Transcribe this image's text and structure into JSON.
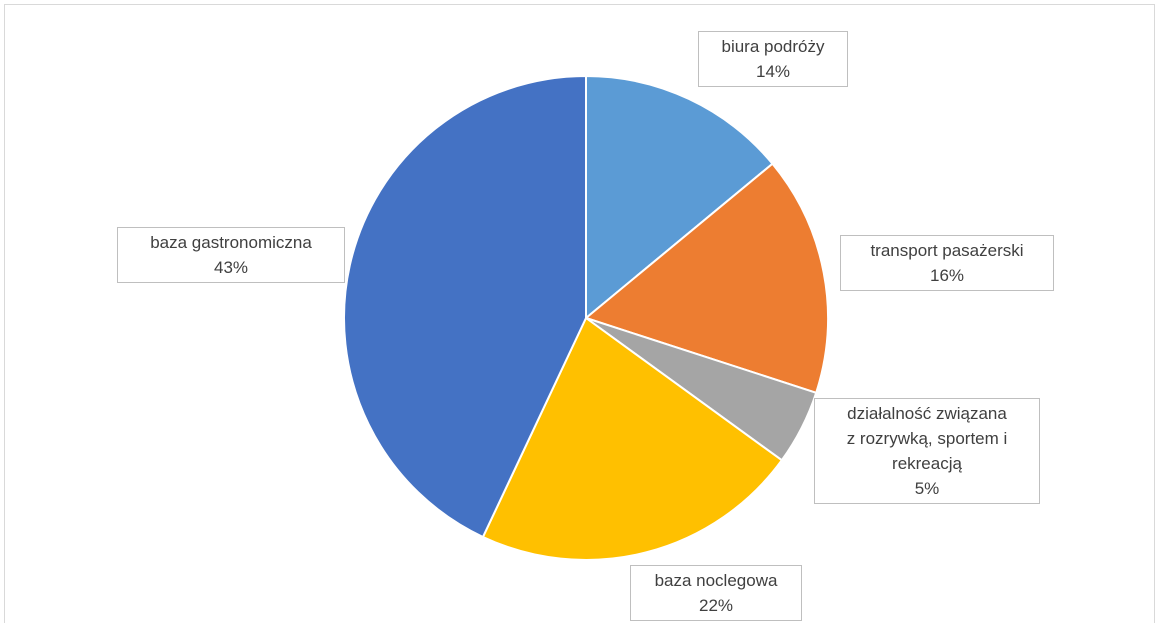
{
  "chart_data": {
    "type": "pie",
    "categories": [
      "biura podróży",
      "transport pasażerski",
      "działalność związana z rozrywką, sportem i rekreacją",
      "baza noclegowa",
      "baza gastronomiczna"
    ],
    "values": [
      14,
      16,
      5,
      22,
      43
    ],
    "value_labels": [
      "14%",
      "16%",
      "5%",
      "22%",
      "43%"
    ],
    "label_lines": [
      [
        "biura podróży"
      ],
      [
        "transport pasażerski"
      ],
      [
        "działalność związana",
        "z rozrywką, sportem i",
        "rekreacją"
      ],
      [
        "baza noclegowa"
      ],
      [
        "baza gastronomiczna"
      ]
    ],
    "colors": [
      "#5b9bd5",
      "#ed7d31",
      "#a5a5a5",
      "#ffc000",
      "#4472c4"
    ],
    "start_angle": "12 o'clock",
    "direction": "clockwise",
    "legend": "none",
    "data_labels": "outside, boxed"
  }
}
